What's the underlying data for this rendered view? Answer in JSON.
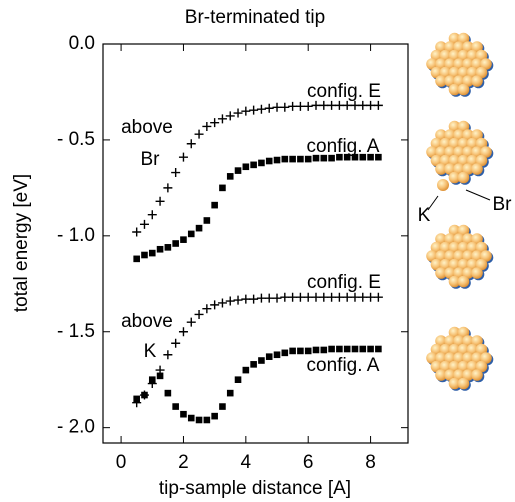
{
  "chart_data": {
    "type": "scatter",
    "title": "Br-terminated tip",
    "x_label": "tip-sample distance [A]",
    "y_label": "total energy [eV]",
    "x": [
      0.5,
      0.75,
      1.0,
      1.25,
      1.5,
      1.75,
      2.0,
      2.25,
      2.5,
      2.75,
      3.0,
      3.25,
      3.5,
      3.75,
      4.0,
      4.25,
      4.5,
      4.75,
      5.0,
      5.25,
      5.5,
      5.75,
      6.0,
      6.25,
      6.5,
      6.75,
      7.0,
      7.25,
      7.5,
      7.75,
      8.0,
      8.25
    ],
    "series": [
      {
        "name": "config. E",
        "marker": "plus",
        "color": "#000000",
        "values": [
          -0.98,
          -0.94,
          -0.89,
          -0.82,
          -0.75,
          -0.67,
          -0.59,
          -0.52,
          -0.47,
          -0.43,
          -0.41,
          -0.39,
          -0.375,
          -0.36,
          -0.35,
          -0.345,
          -0.34,
          -0.335,
          -0.33,
          -0.33,
          -0.325,
          -0.325,
          -0.325,
          -0.32,
          -0.32,
          -0.32,
          -0.32,
          -0.32,
          -0.32,
          -0.32,
          -0.32,
          -0.32
        ]
      },
      {
        "name": "config. A",
        "marker": "square",
        "color": "#000000",
        "values": [
          -1.12,
          -1.1,
          -1.09,
          -1.07,
          -1.06,
          -1.04,
          -1.02,
          -0.99,
          -0.96,
          -0.92,
          -0.84,
          -0.75,
          -0.69,
          -0.66,
          -0.64,
          -0.63,
          -0.62,
          -0.61,
          -0.605,
          -0.6,
          -0.6,
          -0.6,
          -0.6,
          -0.595,
          -0.595,
          -0.595,
          -0.59,
          -0.59,
          -0.59,
          -0.59,
          -0.59,
          -0.59
        ]
      },
      {
        "name": "config. E",
        "marker": "plus",
        "color": "#000000",
        "values": [
          -1.87,
          -1.83,
          -1.77,
          -1.7,
          -1.62,
          -1.56,
          -1.5,
          -1.45,
          -1.41,
          -1.38,
          -1.36,
          -1.35,
          -1.34,
          -1.335,
          -1.33,
          -1.33,
          -1.325,
          -1.325,
          -1.325,
          -1.32,
          -1.32,
          -1.32,
          -1.32,
          -1.32,
          -1.32,
          -1.32,
          -1.32,
          -1.32,
          -1.32,
          -1.32,
          -1.32,
          -1.32
        ]
      },
      {
        "name": "config. A",
        "marker": "square",
        "color": "#000000",
        "values": [
          -1.85,
          -1.83,
          -1.75,
          -1.73,
          -1.82,
          -1.89,
          -1.93,
          -1.95,
          -1.96,
          -1.96,
          -1.94,
          -1.89,
          -1.82,
          -1.75,
          -1.7,
          -1.67,
          -1.65,
          -1.63,
          -1.62,
          -1.61,
          -1.6,
          -1.6,
          -1.6,
          -1.595,
          -1.595,
          -1.59,
          -1.59,
          -1.59,
          -1.59,
          -1.59,
          -1.59,
          -1.59
        ]
      }
    ],
    "annotations": [
      "above",
      "Br",
      "above",
      "K"
    ],
    "cluster_labels": [
      "K",
      "Br"
    ],
    "xlim": [
      -0.58,
      9.2
    ],
    "ylim": [
      -2.08,
      0.0
    ],
    "xticks": [
      0,
      2,
      4,
      6,
      8
    ],
    "yticks": [
      {
        "value": 0,
        "label": "0.0"
      },
      {
        "value": -0.5,
        "label": "- 0.5"
      },
      {
        "value": -1.0,
        "label": "- 1.0"
      },
      {
        "value": -1.5,
        "label": "- 1.5"
      },
      {
        "value": -2.0,
        "label": "- 2.0"
      }
    ]
  }
}
